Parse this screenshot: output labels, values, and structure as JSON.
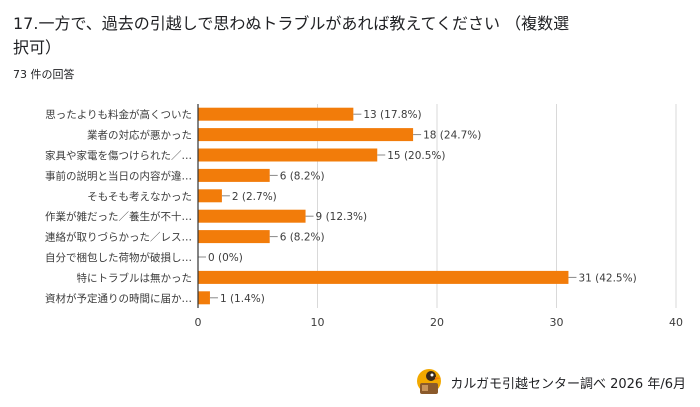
{
  "question_title": "17.一方で、過去の引越しで思わぬトラブルがあれば教えてください （複数選択可）",
  "response_count": "73 件の回答",
  "credit": "カルガモ引越センター調べ 2026 年/6月",
  "colors": {
    "bar": "#f27c0a",
    "grid": "#d9d9d9",
    "axis": "#333333",
    "text": "#3c3c3c"
  },
  "icons": {
    "mascot": "duck-mascot-icon"
  },
  "chart_data": {
    "type": "bar",
    "orientation": "horizontal",
    "categories": [
      "思ったよりも料金が高くついた",
      "業者の対応が悪かった",
      "家具や家電を傷つけられた／…",
      "事前の説明と当日の内容が違…",
      "そもそも考えなかった",
      "作業が雑だった／養生が不十…",
      "連絡が取りづらかった／レス…",
      "自分で梱包した荷物が破損し…",
      "特にトラブルは無かった",
      "資材が予定通りの時間に届か…"
    ],
    "values": [
      13,
      18,
      15,
      6,
      2,
      9,
      6,
      0,
      31,
      1
    ],
    "data_labels": [
      "13 (17.8%)",
      "18 (24.7%)",
      "15 (20.5%)",
      "6 (8.2%)",
      "2 (2.7%)",
      "9 (12.3%)",
      "6 (8.2%)",
      "0 (0%)",
      "31 (42.5%)",
      "1 (1.4%)"
    ],
    "xlim": [
      0,
      40
    ],
    "xticks": [
      0,
      10,
      20,
      30,
      40
    ],
    "grid": true
  }
}
